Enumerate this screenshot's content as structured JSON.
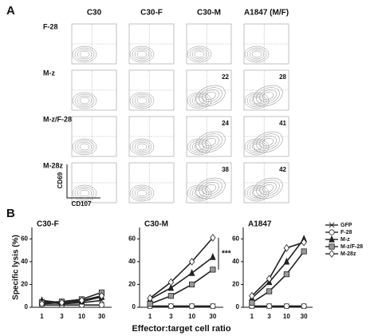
{
  "panel_a": {
    "label": "A",
    "columns": [
      "C30",
      "C30-F",
      "C30-M",
      "A1847 (M/F)"
    ],
    "rows": [
      {
        "label": "F-28",
        "values": [
          null,
          null,
          null,
          null
        ]
      },
      {
        "label": "M-z",
        "values": [
          null,
          null,
          22,
          28
        ]
      },
      {
        "label": "M-z/F-28",
        "values": [
          null,
          null,
          24,
          41
        ]
      },
      {
        "label": "M-28z",
        "values": [
          null,
          null,
          38,
          42
        ]
      }
    ],
    "y_axis": "CD69",
    "x_axis": "CD107"
  },
  "panel_b": {
    "label": "B"
  },
  "chart_data": [
    {
      "type": "line",
      "title": "C30-F",
      "ylabel": "Specific lysis (%)",
      "categories": [
        "1",
        "3",
        "10",
        "30"
      ],
      "ylim": [
        0,
        70
      ],
      "yticks": [
        0,
        20,
        40,
        60
      ],
      "series": [
        {
          "marker": "x",
          "fill": "#222",
          "values": [
            5,
            3,
            4,
            6
          ]
        },
        {
          "marker": "circle",
          "fill": "#fff",
          "values": [
            2,
            2,
            2,
            2
          ]
        },
        {
          "marker": "triangle",
          "fill": "#222",
          "values": [
            6,
            4,
            5,
            9
          ]
        },
        {
          "marker": "square",
          "fill": "#999",
          "values": [
            4,
            5,
            7,
            13
          ]
        },
        {
          "marker": "diamond",
          "fill": "#fff",
          "values": [
            3,
            4,
            6,
            10
          ]
        }
      ]
    },
    {
      "type": "line",
      "title": "C30-M",
      "xlabel": "Effector:target cell ratio",
      "annotation": "***",
      "categories": [
        "1",
        "3",
        "10",
        "30"
      ],
      "ylim": [
        0,
        70
      ],
      "yticks": [
        0,
        20,
        40,
        60
      ],
      "series": [
        {
          "marker": "x",
          "fill": "#222",
          "values": [
            1,
            1,
            1,
            1
          ]
        },
        {
          "marker": "circle",
          "fill": "#fff",
          "values": [
            1,
            1,
            1,
            1
          ]
        },
        {
          "marker": "triangle",
          "fill": "#222",
          "values": [
            7,
            17,
            30,
            44
          ]
        },
        {
          "marker": "square",
          "fill": "#999",
          "values": [
            3,
            10,
            20,
            33
          ]
        },
        {
          "marker": "diamond",
          "fill": "#fff",
          "values": [
            8,
            22,
            40,
            61
          ]
        }
      ]
    },
    {
      "type": "line",
      "title": "A1847",
      "categories": [
        "1",
        "3",
        "10",
        "30"
      ],
      "ylim": [
        0,
        70
      ],
      "yticks": [
        0,
        20,
        40,
        60
      ],
      "series": [
        {
          "name": "GFP",
          "marker": "x",
          "fill": "#222",
          "values": [
            1,
            1,
            1,
            1
          ]
        },
        {
          "name": "F-28",
          "marker": "circle",
          "fill": "#fff",
          "values": [
            1,
            1,
            1,
            1
          ]
        },
        {
          "name": "M-z",
          "marker": "triangle",
          "fill": "#222",
          "values": [
            8,
            22,
            40,
            60
          ]
        },
        {
          "name": "M-z/F-28",
          "marker": "square",
          "fill": "#999",
          "values": [
            4,
            14,
            29,
            49
          ]
        },
        {
          "name": "M-28z",
          "marker": "diamond",
          "fill": "#fff",
          "values": [
            10,
            25,
            52,
            57
          ]
        }
      ]
    }
  ]
}
